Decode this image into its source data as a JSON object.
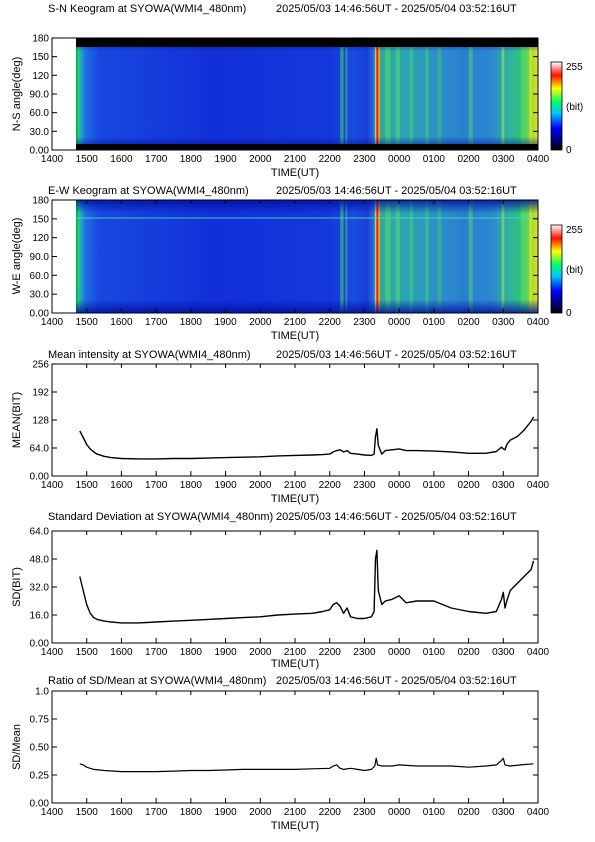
{
  "x_tick_labels": [
    "1400",
    "1500",
    "1600",
    "1700",
    "1800",
    "1900",
    "2000",
    "2100",
    "2200",
    "2300",
    "0000",
    "0100",
    "0200",
    "0300",
    "0400"
  ],
  "x_axis_label": "TIME(UT)",
  "colors": {
    "plot_line": "#000000",
    "frame": "#000000"
  },
  "chart_data": [
    {
      "type": "heatmap",
      "title": "S-N Keogram at SYOWA(WMI4_480nm)",
      "time_range": "2025/05/03 14:46:56UT - 2025/05/04 03:52:16UT",
      "ylabel": "N-S angle(deg)",
      "yticks": [
        "0.00",
        "30.0",
        "60.0",
        "90.0",
        "120",
        "150",
        "180"
      ],
      "ylim": [
        0,
        180
      ],
      "colorbar": {
        "min": "0",
        "max": "255",
        "unit": "(bit)",
        "colormap": "rainbow: black-blue-cyan-green-yellow-red-white"
      },
      "data_start_hour": 14.78,
      "data_end_hour": 27.87,
      "dark_band_deg": [
        [
          0,
          10
        ],
        [
          168,
          180
        ]
      ]
    },
    {
      "type": "heatmap",
      "title": "E-W Keogram at SYOWA(WMI4_480nm)",
      "time_range": "2025/05/03 14:46:56UT - 2025/05/04 03:52:16UT",
      "ylabel": "W-E angle(deg)",
      "yticks": [
        "0.00",
        "30.0",
        "60.0",
        "90.0",
        "120",
        "150",
        "180"
      ],
      "ylim": [
        0,
        180
      ],
      "colorbar": {
        "min": "0",
        "max": "255",
        "unit": "(bit)",
        "colormap": "rainbow: black-blue-cyan-green-yellow-red-white"
      },
      "data_start_hour": 14.78,
      "data_end_hour": 27.87
    },
    {
      "type": "line",
      "title": "Mean intensity at SYOWA(WMI4_480nm)",
      "time_range": "2025/05/03 14:46:56UT - 2025/05/04 03:52:16UT",
      "ylabel": "MEAN(BIT)",
      "yticks": [
        "0.00",
        "64.0",
        "128",
        "192",
        "256"
      ],
      "ylim": [
        0,
        256
      ],
      "xlim": [
        14,
        28
      ],
      "x": [
        14.8,
        14.9,
        15.0,
        15.1,
        15.2,
        15.3,
        15.5,
        15.7,
        16.0,
        16.5,
        17.0,
        17.5,
        18.0,
        18.5,
        19.0,
        19.5,
        20.0,
        20.5,
        21.0,
        21.5,
        21.8,
        22.0,
        22.1,
        22.2,
        22.3,
        22.4,
        22.5,
        22.6,
        22.8,
        23.0,
        23.2,
        23.28,
        23.32,
        23.36,
        23.4,
        23.5,
        23.6,
        23.8,
        24.0,
        24.2,
        24.5,
        25.0,
        25.5,
        26.0,
        26.5,
        26.8,
        26.95,
        27.0,
        27.05,
        27.1,
        27.2,
        27.4,
        27.6,
        27.8,
        27.87
      ],
      "y": [
        103,
        88,
        72,
        62,
        55,
        50,
        45,
        42,
        40,
        39,
        39,
        40,
        40,
        41,
        42,
        43,
        44,
        46,
        47,
        48,
        49,
        50,
        55,
        58,
        60,
        55,
        58,
        52,
        50,
        48,
        47,
        50,
        90,
        108,
        70,
        50,
        58,
        60,
        62,
        58,
        58,
        57,
        55,
        52,
        52,
        56,
        66,
        62,
        60,
        72,
        82,
        90,
        105,
        125,
        135
      ]
    },
    {
      "type": "line",
      "title": "Standard Deviation at SYOWA(WMI4_480nm)",
      "time_range": "2025/05/03 14:46:56UT - 2025/05/04 03:52:16UT",
      "ylabel": "SD(BIT)",
      "yticks": [
        "0.00",
        "16.0",
        "32.0",
        "48.0",
        "64.0"
      ],
      "ylim": [
        0,
        64
      ],
      "xlim": [
        14,
        28
      ],
      "x": [
        14.8,
        14.9,
        15.0,
        15.1,
        15.2,
        15.3,
        15.5,
        15.7,
        16.0,
        16.5,
        17.0,
        17.5,
        18.0,
        18.5,
        19.0,
        19.5,
        20.0,
        20.5,
        21.0,
        21.5,
        21.8,
        22.0,
        22.1,
        22.2,
        22.3,
        22.4,
        22.5,
        22.6,
        22.8,
        23.0,
        23.2,
        23.28,
        23.32,
        23.36,
        23.4,
        23.5,
        23.6,
        23.8,
        24.0,
        24.2,
        24.5,
        25.0,
        25.5,
        26.0,
        26.5,
        26.8,
        26.95,
        27.0,
        27.05,
        27.1,
        27.2,
        27.4,
        27.6,
        27.8,
        27.87
      ],
      "y": [
        38,
        30,
        22,
        17,
        14.5,
        13.5,
        12.5,
        12,
        11.5,
        11.5,
        12,
        12.5,
        13,
        13.5,
        14,
        14.5,
        15,
        16,
        16.5,
        17,
        18,
        19,
        22,
        23,
        21,
        17,
        20,
        15,
        14,
        14,
        15,
        18,
        48,
        53,
        30,
        22,
        24,
        25,
        27,
        23,
        24,
        24,
        20,
        18,
        17,
        18,
        25,
        29,
        20,
        24,
        30,
        34,
        38,
        42,
        47
      ]
    },
    {
      "type": "line",
      "title": "Ratio of SD/Mean at SYOWA(WMI4_480nm)",
      "time_range": "2025/05/03 14:46:56UT - 2025/05/04 03:52:16UT",
      "ylabel": "SD/Mean",
      "yticks": [
        "0.00",
        "0.25",
        "0.50",
        "0.75",
        "1.0"
      ],
      "ylim": [
        0,
        1
      ],
      "xlim": [
        14,
        28
      ],
      "x": [
        14.8,
        14.9,
        15.0,
        15.2,
        15.5,
        16.0,
        16.5,
        17.0,
        17.5,
        18.0,
        18.5,
        19.0,
        19.5,
        20.0,
        20.5,
        21.0,
        21.5,
        22.0,
        22.1,
        22.2,
        22.3,
        22.4,
        22.6,
        22.8,
        23.0,
        23.2,
        23.3,
        23.34,
        23.38,
        23.5,
        23.8,
        24.0,
        24.5,
        25.0,
        25.5,
        26.0,
        26.5,
        26.8,
        26.95,
        27.0,
        27.05,
        27.2,
        27.5,
        27.87
      ],
      "y": [
        0.35,
        0.34,
        0.32,
        0.3,
        0.29,
        0.28,
        0.28,
        0.28,
        0.285,
        0.29,
        0.29,
        0.295,
        0.3,
        0.3,
        0.3,
        0.3,
        0.305,
        0.31,
        0.33,
        0.34,
        0.31,
        0.3,
        0.31,
        0.3,
        0.29,
        0.3,
        0.33,
        0.4,
        0.34,
        0.33,
        0.33,
        0.34,
        0.33,
        0.33,
        0.33,
        0.32,
        0.33,
        0.34,
        0.38,
        0.4,
        0.34,
        0.33,
        0.34,
        0.35
      ]
    }
  ]
}
